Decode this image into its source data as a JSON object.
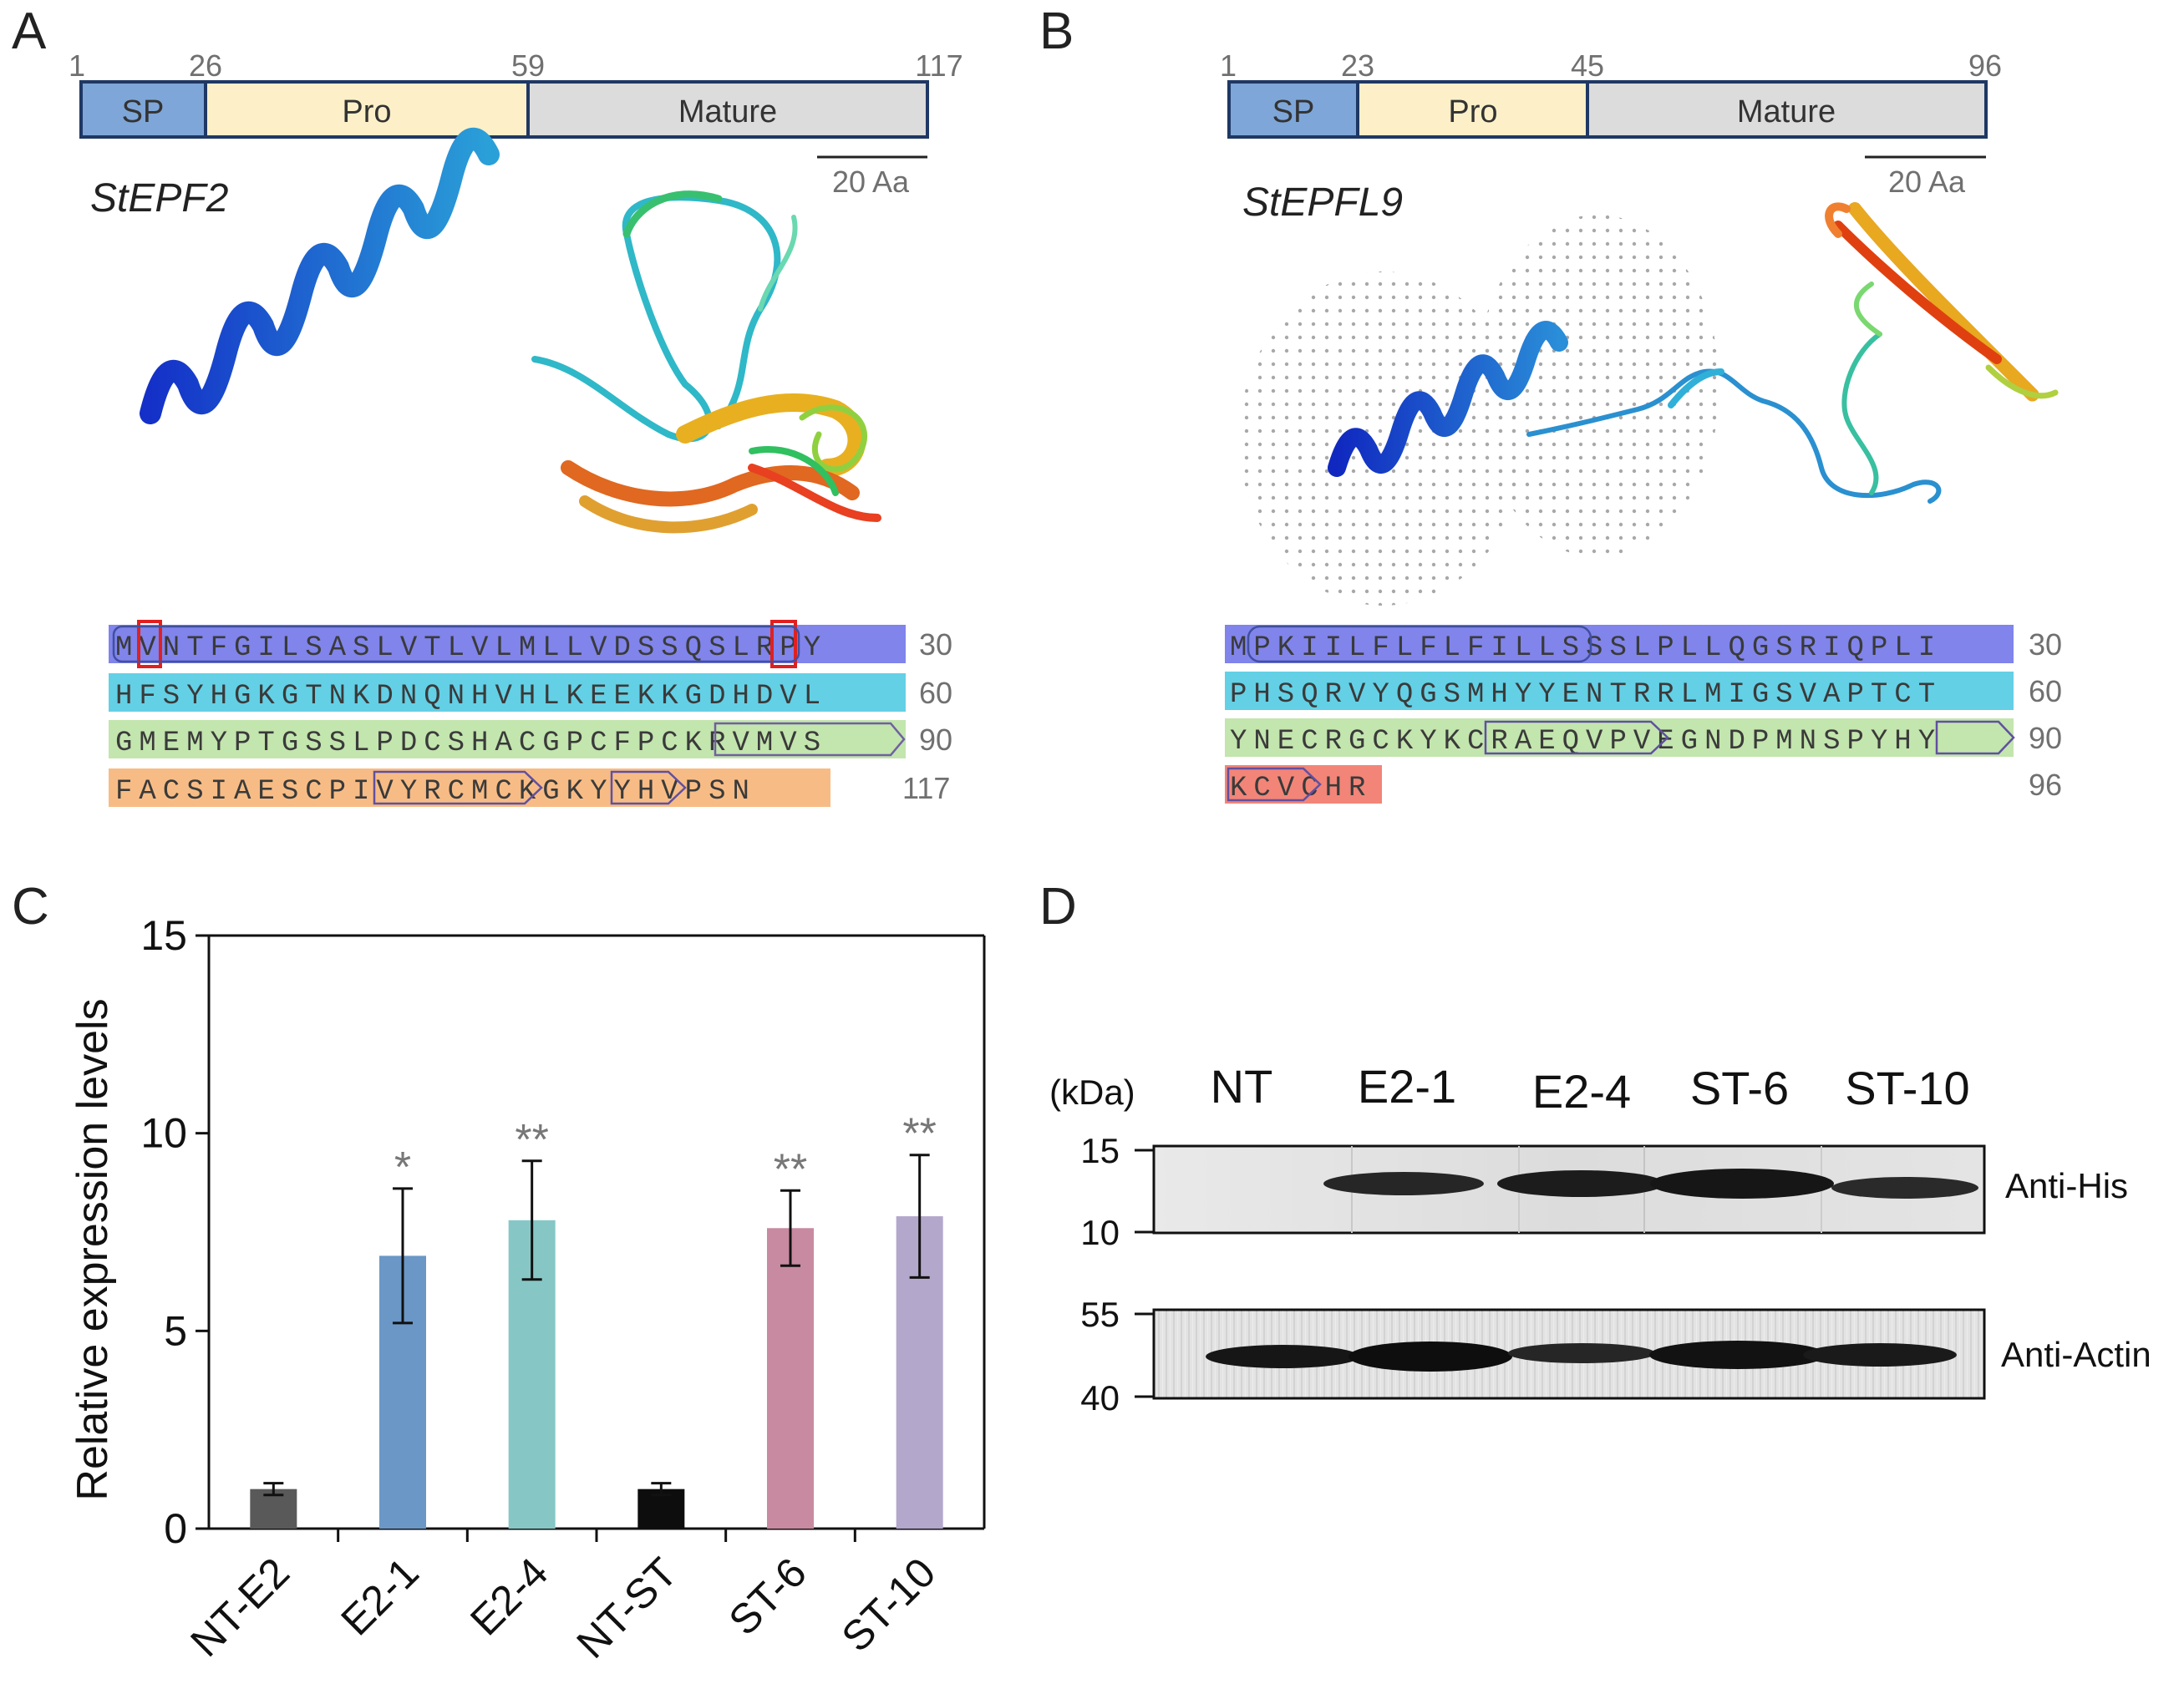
{
  "panels": {
    "A": {
      "letter": "A",
      "gene": "StEPF2",
      "positions": [
        "1",
        "26",
        "59",
        "117"
      ],
      "domains": [
        "SP",
        "Pro",
        "Mature"
      ],
      "scale": "20 Aa",
      "seq_lines": [
        {
          "seq": "MVNTFGILSASLVTLVLMLLVDSSQSLRPY",
          "num": "30"
        },
        {
          "seq": "HFSYHGKGTNKDNQNHVHLKEEKKGDHDVL",
          "num": "60"
        },
        {
          "seq": "GMEMYPTGSSLPDCSHACGPCFPCKRVMVS",
          "num": "90"
        },
        {
          "seq": "FACSIAESCPIVYRCMCKGKYYHVPSN",
          "num": "117"
        }
      ]
    },
    "B": {
      "letter": "B",
      "gene": "StEPFL9",
      "positions": [
        "1",
        "23",
        "45",
        "96"
      ],
      "domains": [
        "SP",
        "Pro",
        "Mature"
      ],
      "scale": "20 Aa",
      "seq_lines": [
        {
          "seq": "MPKIILFLFLFILLSSSLPLLQGSRIQPLI",
          "num": "30"
        },
        {
          "seq": "PHSQRVYQGSMHYYENTRRLMIGSVAPTCT",
          "num": "60"
        },
        {
          "seq": "YNECRGCKYKCRAEQVPVEGNDPMNSPYHY",
          "num": "90"
        },
        {
          "seq": "KCVCHR",
          "num": "96"
        }
      ]
    },
    "C": {
      "letter": "C"
    },
    "D": {
      "letter": "D",
      "unit": "(kDa)",
      "lanes": [
        "NT",
        "E2-1",
        "E2-4",
        "ST-6",
        "ST-10"
      ],
      "his": {
        "label": "Anti-His",
        "markers": [
          "15",
          "10"
        ]
      },
      "actin": {
        "label": "Anti-Actin",
        "markers": [
          "55",
          "40"
        ]
      }
    }
  },
  "colors": {
    "sp": "#7ea6d8",
    "pro": "#fdf0c8",
    "mature": "#dcdcdc",
    "domain_border": "#1f3864"
  },
  "chart_data": {
    "type": "bar",
    "categories": [
      "NT-E2",
      "E2-1",
      "E2-4",
      "NT-ST",
      "ST-6",
      "ST-10"
    ],
    "values": [
      1.0,
      6.9,
      7.8,
      1.0,
      7.6,
      7.9
    ],
    "errors": [
      0.15,
      1.7,
      1.5,
      0.15,
      0.95,
      1.55
    ],
    "significance": [
      "",
      "*",
      "**",
      "",
      "**",
      "**"
    ],
    "colors": [
      "#595959",
      "#6b97c6",
      "#86c7c6",
      "#0d0d0d",
      "#c88aa0",
      "#b3a7cb"
    ],
    "ylabel": "Relative expression levels",
    "ylim": [
      0,
      15
    ],
    "yticks": [
      "0",
      "5",
      "10",
      "15"
    ]
  }
}
